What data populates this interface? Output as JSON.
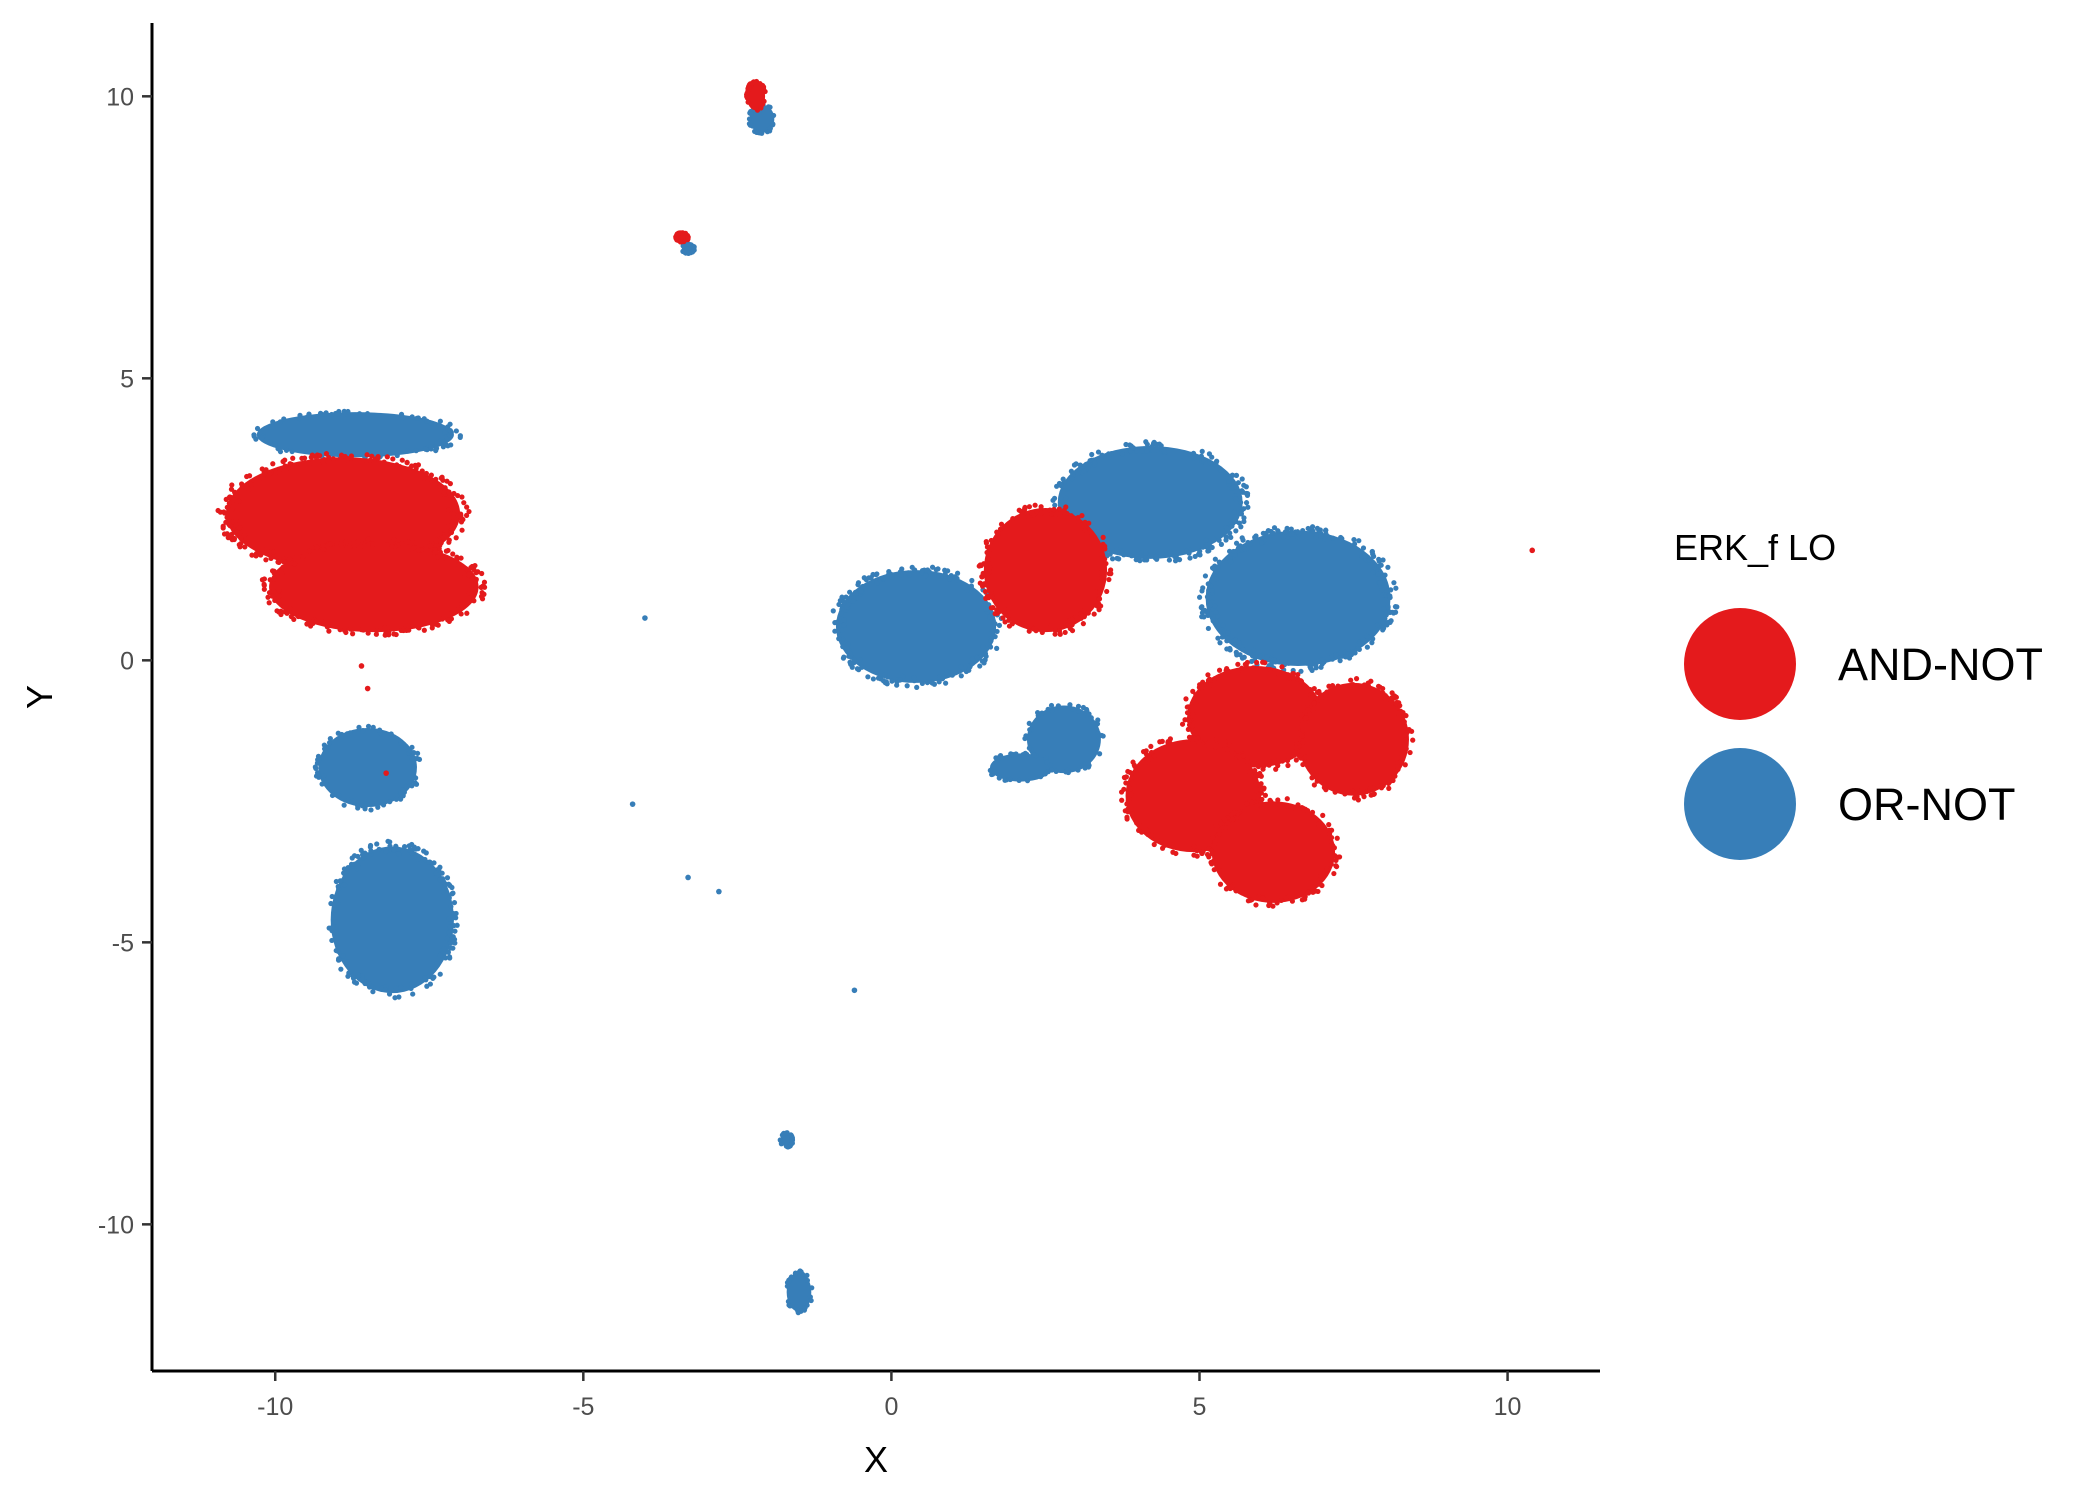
{
  "chart_data": {
    "type": "scatter",
    "title": "",
    "xlabel": "X",
    "ylabel": "Y",
    "xlim": [
      -12,
      11.5
    ],
    "ylim": [
      -12.6,
      11.3
    ],
    "x_ticks": [
      -10,
      -5,
      0,
      5,
      10
    ],
    "y_ticks": [
      -10,
      -5,
      0,
      5,
      10
    ],
    "x_tick_labels": [
      "-10",
      "-5",
      "0",
      "5",
      "10"
    ],
    "y_tick_labels": [
      "-10",
      "-5",
      "0",
      "5",
      "10"
    ],
    "grid": false,
    "legend": {
      "title": "ERK_f LO",
      "position": "right"
    },
    "series": [
      {
        "name": "AND-NOT",
        "color": "#e41a1c",
        "clusters": [
          {
            "cx": -8.9,
            "cy": 2.6,
            "rx": 1.9,
            "ry": 1.0
          },
          {
            "cx": -8.4,
            "cy": 1.3,
            "rx": 1.7,
            "ry": 0.8
          },
          {
            "cx": 2.5,
            "cy": 1.6,
            "rx": 1.0,
            "ry": 1.1
          },
          {
            "cx": 5.9,
            "cy": -1.0,
            "rx": 1.1,
            "ry": 0.9
          },
          {
            "cx": 7.5,
            "cy": -1.4,
            "rx": 0.9,
            "ry": 1.0
          },
          {
            "cx": 4.9,
            "cy": -2.4,
            "rx": 1.1,
            "ry": 1.0
          },
          {
            "cx": 6.2,
            "cy": -3.4,
            "rx": 1.0,
            "ry": 0.9
          },
          {
            "cx": -2.2,
            "cy": 10.0,
            "rx": 0.15,
            "ry": 0.25
          },
          {
            "cx": -3.4,
            "cy": 7.5,
            "rx": 0.1,
            "ry": 0.08
          }
        ],
        "points": [
          {
            "x": 10.4,
            "y": 1.95
          },
          {
            "x": -8.6,
            "y": -0.1
          },
          {
            "x": -8.5,
            "y": -0.5
          },
          {
            "x": -8.2,
            "y": -2.0
          }
        ]
      },
      {
        "name": "OR-NOT",
        "color": "#377eb8",
        "clusters": [
          {
            "cx": -8.7,
            "cy": 4.0,
            "rx": 1.6,
            "ry": 0.4
          },
          {
            "cx": -8.5,
            "cy": -1.9,
            "rx": 0.8,
            "ry": 0.7
          },
          {
            "cx": -8.1,
            "cy": -4.6,
            "rx": 1.0,
            "ry": 1.3
          },
          {
            "cx": 0.4,
            "cy": 0.6,
            "rx": 1.3,
            "ry": 1.0
          },
          {
            "cx": 4.2,
            "cy": 2.8,
            "rx": 1.5,
            "ry": 1.0
          },
          {
            "cx": 6.6,
            "cy": 1.1,
            "rx": 1.5,
            "ry": 1.2
          },
          {
            "cx": 2.8,
            "cy": -1.4,
            "rx": 0.6,
            "ry": 0.6
          },
          {
            "cx": 2.1,
            "cy": -1.9,
            "rx": 0.5,
            "ry": 0.25
          },
          {
            "cx": -2.1,
            "cy": 9.6,
            "rx": 0.2,
            "ry": 0.25
          },
          {
            "cx": -3.3,
            "cy": 7.3,
            "rx": 0.1,
            "ry": 0.08
          },
          {
            "cx": -1.7,
            "cy": -8.5,
            "rx": 0.1,
            "ry": 0.12
          },
          {
            "cx": -1.5,
            "cy": -11.2,
            "rx": 0.2,
            "ry": 0.35
          }
        ],
        "points": [
          {
            "x": -4.0,
            "y": 0.75
          },
          {
            "x": -4.2,
            "y": -2.55
          },
          {
            "x": -3.3,
            "y": -3.85
          },
          {
            "x": -2.8,
            "y": -4.1
          },
          {
            "x": -0.6,
            "y": -5.85
          }
        ]
      }
    ]
  }
}
